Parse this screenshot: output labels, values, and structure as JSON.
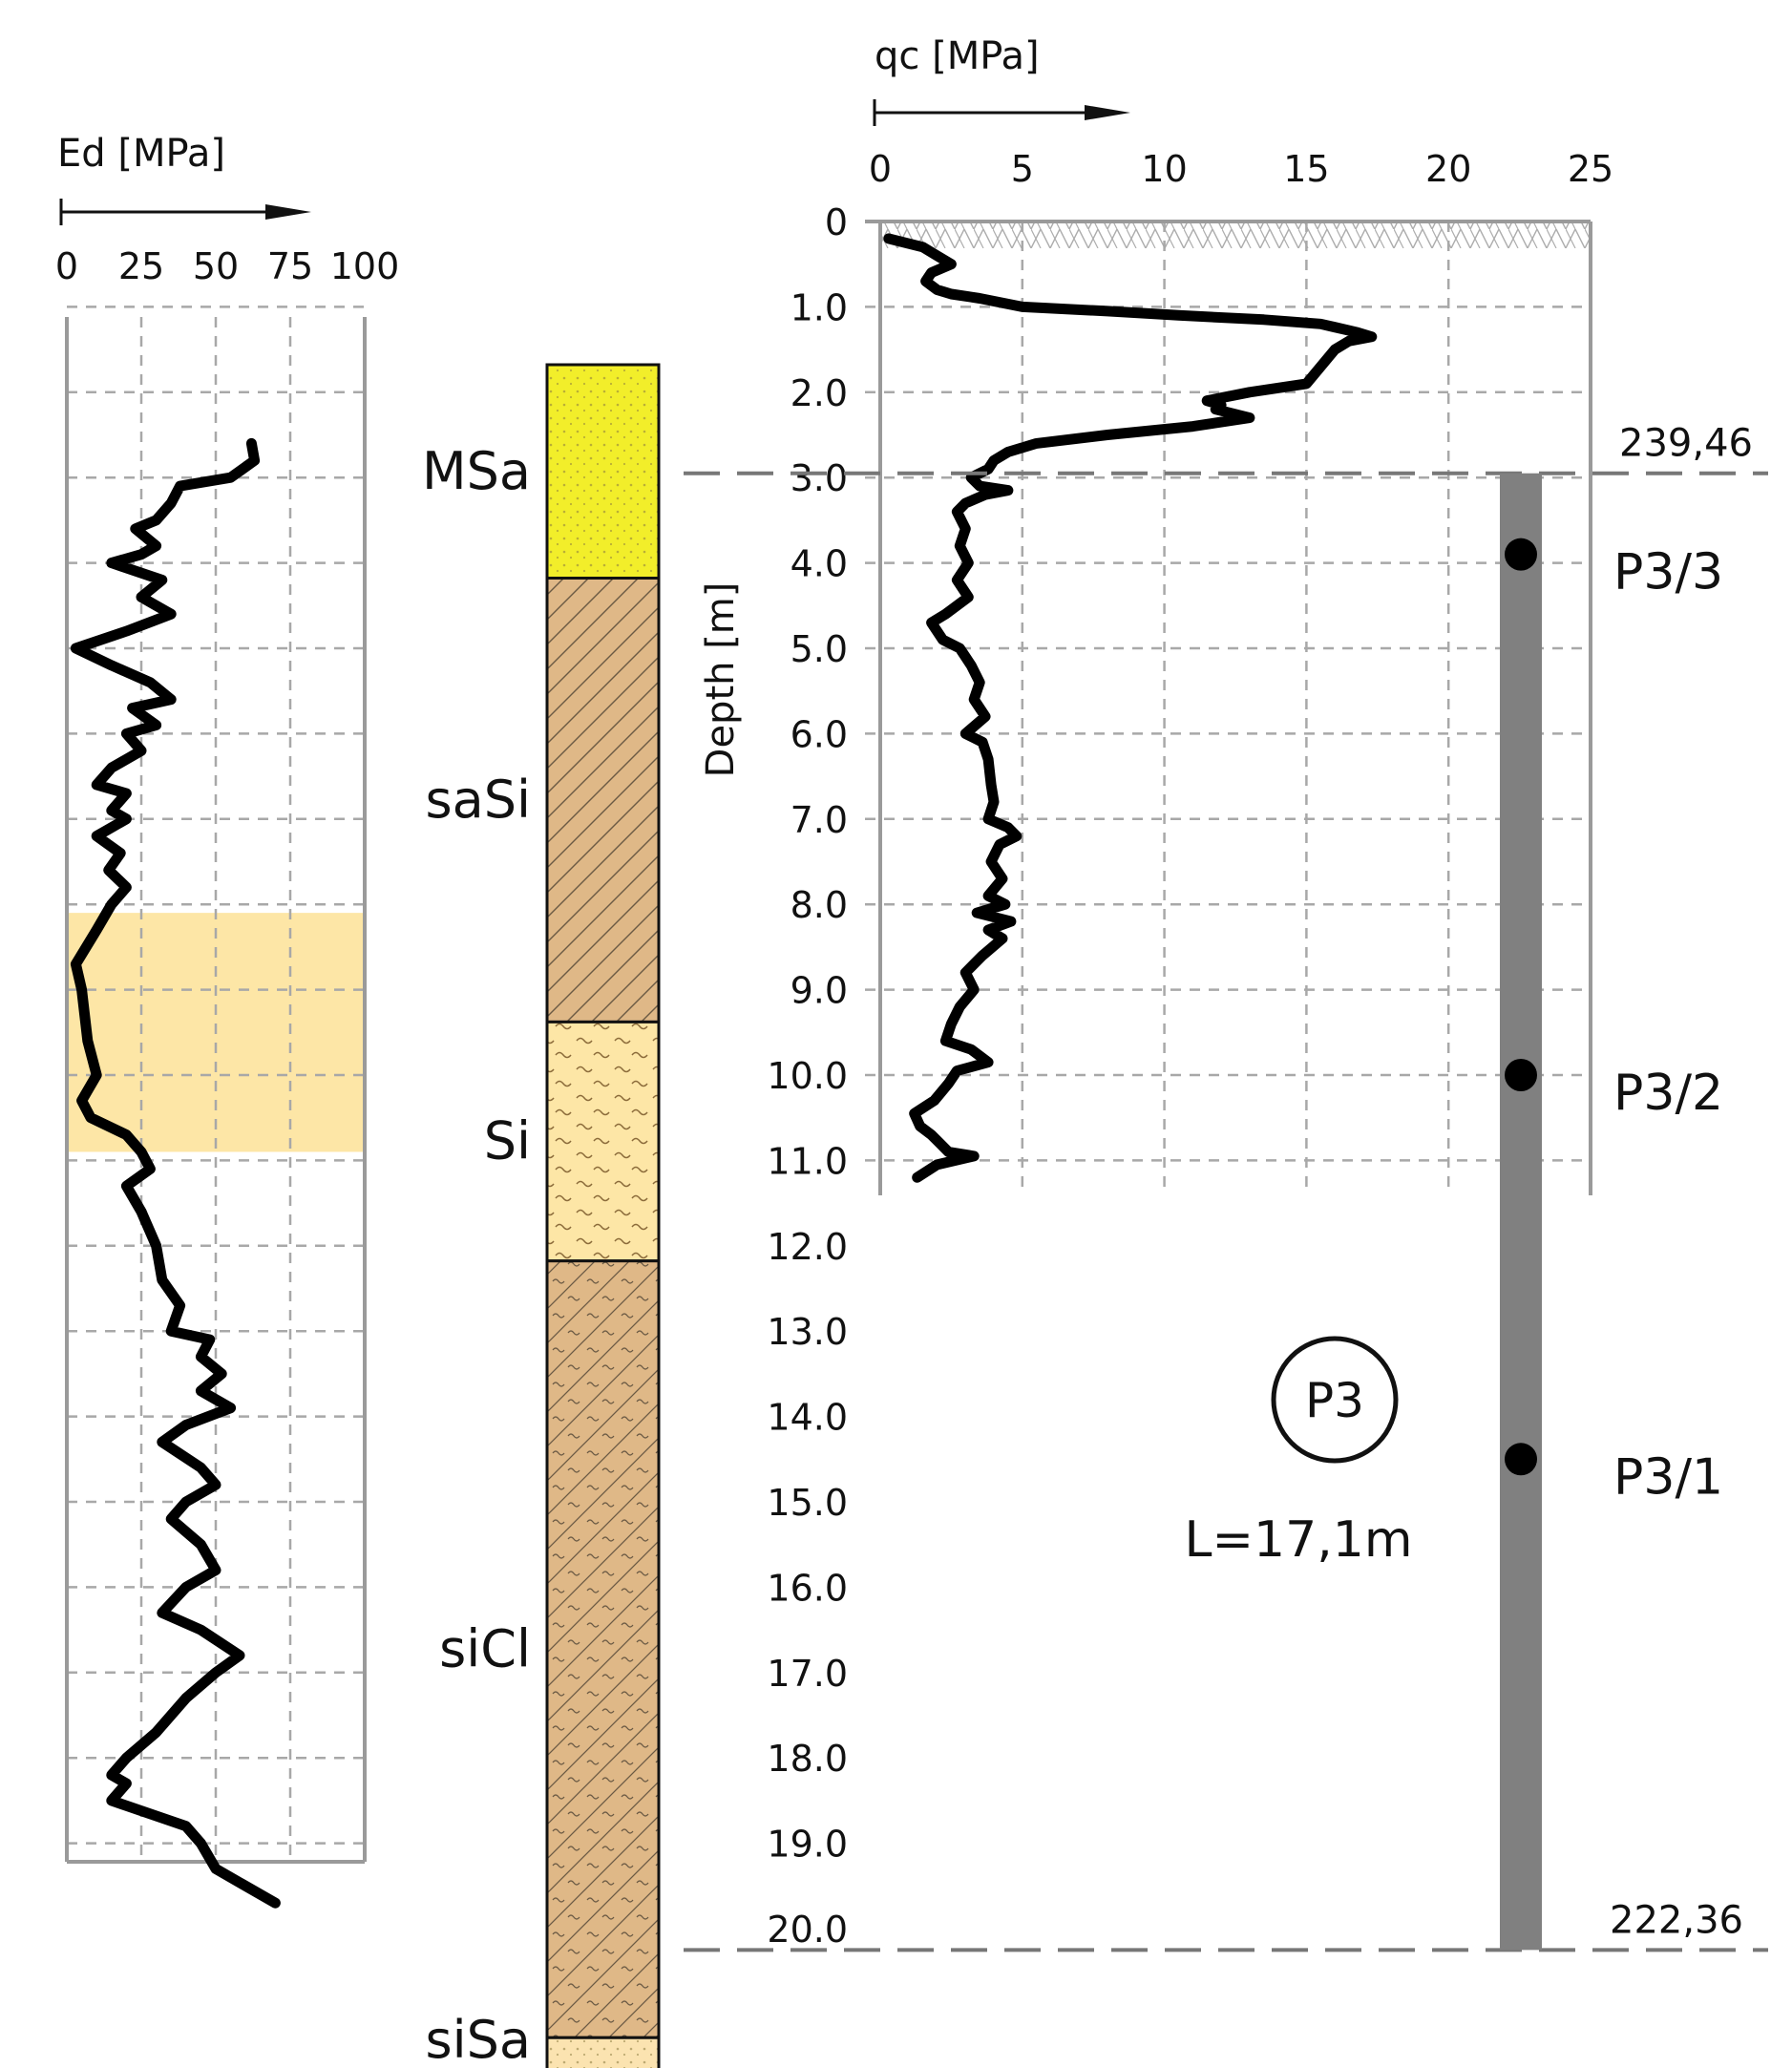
{
  "chart_data": [
    {
      "type": "line",
      "title": "",
      "xlabel": "Ed [MPa]",
      "ylabel": "",
      "xlim": [
        0,
        100
      ],
      "ylim": [
        0,
        20
      ],
      "x_ticks": [
        "0",
        "25",
        "50",
        "75",
        "100"
      ],
      "grid": true,
      "highlight_band_depth": [
        8.1,
        10.9
      ],
      "series": [
        {
          "values_xy": [
            [
              62,
              2.6
            ],
            [
              63,
              2.8
            ],
            [
              55,
              3.0
            ],
            [
              38,
              3.1
            ],
            [
              35,
              3.3
            ],
            [
              30,
              3.5
            ],
            [
              23,
              3.6
            ],
            [
              30,
              3.8
            ],
            [
              25,
              3.9
            ],
            [
              15,
              4.0
            ],
            [
              32,
              4.2
            ],
            [
              25,
              4.4
            ],
            [
              35,
              4.6
            ],
            [
              20,
              4.8
            ],
            [
              3,
              5.0
            ],
            [
              15,
              5.2
            ],
            [
              28,
              5.4
            ],
            [
              35,
              5.6
            ],
            [
              22,
              5.7
            ],
            [
              30,
              5.9
            ],
            [
              20,
              6.0
            ],
            [
              25,
              6.2
            ],
            [
              15,
              6.4
            ],
            [
              10,
              6.6
            ],
            [
              20,
              6.7
            ],
            [
              15,
              6.9
            ],
            [
              20,
              7.0
            ],
            [
              10,
              7.2
            ],
            [
              18,
              7.4
            ],
            [
              14,
              7.6
            ],
            [
              20,
              7.8
            ],
            [
              15,
              8.0
            ],
            [
              10,
              8.3
            ],
            [
              3,
              8.7
            ],
            [
              5,
              9.0
            ],
            [
              7,
              9.6
            ],
            [
              10,
              10.0
            ],
            [
              5,
              10.3
            ],
            [
              8,
              10.5
            ],
            [
              20,
              10.7
            ],
            [
              25,
              10.9
            ],
            [
              28,
              11.1
            ],
            [
              20,
              11.3
            ],
            [
              25,
              11.6
            ],
            [
              30,
              12.0
            ],
            [
              32,
              12.4
            ],
            [
              38,
              12.7
            ],
            [
              35,
              13.0
            ],
            [
              48,
              13.1
            ],
            [
              45,
              13.3
            ],
            [
              52,
              13.5
            ],
            [
              45,
              13.7
            ],
            [
              55,
              13.9
            ],
            [
              40,
              14.1
            ],
            [
              32,
              14.3
            ],
            [
              45,
              14.6
            ],
            [
              50,
              14.8
            ],
            [
              40,
              15.0
            ],
            [
              35,
              15.2
            ],
            [
              45,
              15.5
            ],
            [
              50,
              15.8
            ],
            [
              40,
              16.0
            ],
            [
              32,
              16.3
            ],
            [
              45,
              16.5
            ],
            [
              58,
              16.8
            ],
            [
              50,
              17.0
            ],
            [
              40,
              17.3
            ],
            [
              30,
              17.7
            ],
            [
              20,
              18.0
            ],
            [
              15,
              18.2
            ],
            [
              20,
              18.3
            ],
            [
              15,
              18.5
            ],
            [
              40,
              18.8
            ],
            [
              45,
              19.0
            ],
            [
              50,
              19.3
            ],
            [
              60,
              19.5
            ],
            [
              70,
              19.7
            ]
          ]
        }
      ]
    },
    {
      "type": "line",
      "title": "",
      "xlabel": "qc [MPa]",
      "ylabel": "Depth [m]",
      "xlim": [
        0,
        25
      ],
      "ylim": [
        0,
        20
      ],
      "x_ticks": [
        "0",
        "5",
        "10",
        "15",
        "20",
        "25"
      ],
      "y_ticks": [
        "0",
        "1.0",
        "2.0",
        "3.0",
        "4.0",
        "5.0",
        "6.0",
        "7.0",
        "8.0",
        "9.0",
        "10.0",
        "11.0",
        "12.0",
        "13.0",
        "14.0",
        "15.0",
        "16.0",
        "17.0",
        "18.0",
        "19.0",
        "20.0"
      ],
      "grid": true,
      "series": [
        {
          "values_xy": [
            [
              0.3,
              0.2
            ],
            [
              1.5,
              0.3
            ],
            [
              2.0,
              0.4
            ],
            [
              2.5,
              0.5
            ],
            [
              1.8,
              0.6
            ],
            [
              1.6,
              0.7
            ],
            [
              2.0,
              0.8
            ],
            [
              2.5,
              0.85
            ],
            [
              3.5,
              0.9
            ],
            [
              5.0,
              1.0
            ],
            [
              8.0,
              1.05
            ],
            [
              10.5,
              1.1
            ],
            [
              13.5,
              1.15
            ],
            [
              15.5,
              1.2
            ],
            [
              16.8,
              1.3
            ],
            [
              17.3,
              1.35
            ],
            [
              16.5,
              1.4
            ],
            [
              16.0,
              1.5
            ],
            [
              15.5,
              1.7
            ],
            [
              15.0,
              1.9
            ],
            [
              13.0,
              2.0
            ],
            [
              11.5,
              2.1
            ],
            [
              12.0,
              2.15
            ],
            [
              11.8,
              2.2
            ],
            [
              13.0,
              2.3
            ],
            [
              11.0,
              2.4
            ],
            [
              8.0,
              2.5
            ],
            [
              5.5,
              2.6
            ],
            [
              4.5,
              2.7
            ],
            [
              4.0,
              2.8
            ],
            [
              3.8,
              2.9
            ],
            [
              3.2,
              3.0
            ],
            [
              3.5,
              3.1
            ],
            [
              4.5,
              3.15
            ],
            [
              3.7,
              3.2
            ],
            [
              3.0,
              3.3
            ],
            [
              2.7,
              3.4
            ],
            [
              3.0,
              3.6
            ],
            [
              2.8,
              3.8
            ],
            [
              3.1,
              4.0
            ],
            [
              2.7,
              4.2
            ],
            [
              3.1,
              4.4
            ],
            [
              2.3,
              4.6
            ],
            [
              1.8,
              4.7
            ],
            [
              2.2,
              4.9
            ],
            [
              2.8,
              5.0
            ],
            [
              3.2,
              5.2
            ],
            [
              3.5,
              5.4
            ],
            [
              3.3,
              5.6
            ],
            [
              3.7,
              5.8
            ],
            [
              3.0,
              6.0
            ],
            [
              3.6,
              6.1
            ],
            [
              3.8,
              6.3
            ],
            [
              3.9,
              6.6
            ],
            [
              4.0,
              6.8
            ],
            [
              3.8,
              7.0
            ],
            [
              4.5,
              7.1
            ],
            [
              4.8,
              7.2
            ],
            [
              4.2,
              7.3
            ],
            [
              3.9,
              7.5
            ],
            [
              4.3,
              7.7
            ],
            [
              3.8,
              7.9
            ],
            [
              4.4,
              8.0
            ],
            [
              3.4,
              8.1
            ],
            [
              4.6,
              8.2
            ],
            [
              3.8,
              8.3
            ],
            [
              4.3,
              8.4
            ],
            [
              3.6,
              8.6
            ],
            [
              3.0,
              8.8
            ],
            [
              3.3,
              9.0
            ],
            [
              2.8,
              9.2
            ],
            [
              2.5,
              9.4
            ],
            [
              2.3,
              9.6
            ],
            [
              3.2,
              9.7
            ],
            [
              3.8,
              9.85
            ],
            [
              2.7,
              9.95
            ],
            [
              2.4,
              10.1
            ],
            [
              1.9,
              10.3
            ],
            [
              1.2,
              10.45
            ],
            [
              1.4,
              10.6
            ],
            [
              1.8,
              10.7
            ],
            [
              2.1,
              10.8
            ],
            [
              2.4,
              10.9
            ],
            [
              3.3,
              10.95
            ],
            [
              2.0,
              11.05
            ],
            [
              1.3,
              11.2
            ]
          ]
        }
      ]
    }
  ],
  "soil_profile": {
    "layers": [
      {
        "label": "",
        "top": 0.0,
        "bottom": 0.4,
        "color": "#ffffff",
        "pattern": "fill"
      },
      {
        "label": "MSa",
        "top": 0.4,
        "bottom": 2.9,
        "color": "#f2ee2a",
        "pattern": "dots"
      },
      {
        "label": "saSi",
        "top": 2.9,
        "bottom": 8.1,
        "color": "#dfb887",
        "pattern": "hatch"
      },
      {
        "label": "Si",
        "top": 8.1,
        "bottom": 10.9,
        "color": "#fde6a6",
        "pattern": "waves"
      },
      {
        "label": "siCl",
        "top": 10.9,
        "bottom": 20.0,
        "color": "#dfb887",
        "pattern": "hatch-waves"
      },
      {
        "label": "siSa",
        "top": 20.0,
        "bottom": 21.3,
        "color": "#fbe3b0",
        "pattern": "dots"
      }
    ]
  },
  "pile": {
    "marker": "P3",
    "length_label": "L=17,1m",
    "top_elevation": "239,46",
    "bottom_elevation": "222,36",
    "samples": [
      {
        "label": "P3/3",
        "depth": 3.9
      },
      {
        "label": "P3/2",
        "depth": 10.0
      },
      {
        "label": "P3/1",
        "depth": 14.5
      }
    ]
  },
  "colors": {
    "highlight_band": "#fde6a6",
    "pile": "#808080"
  }
}
